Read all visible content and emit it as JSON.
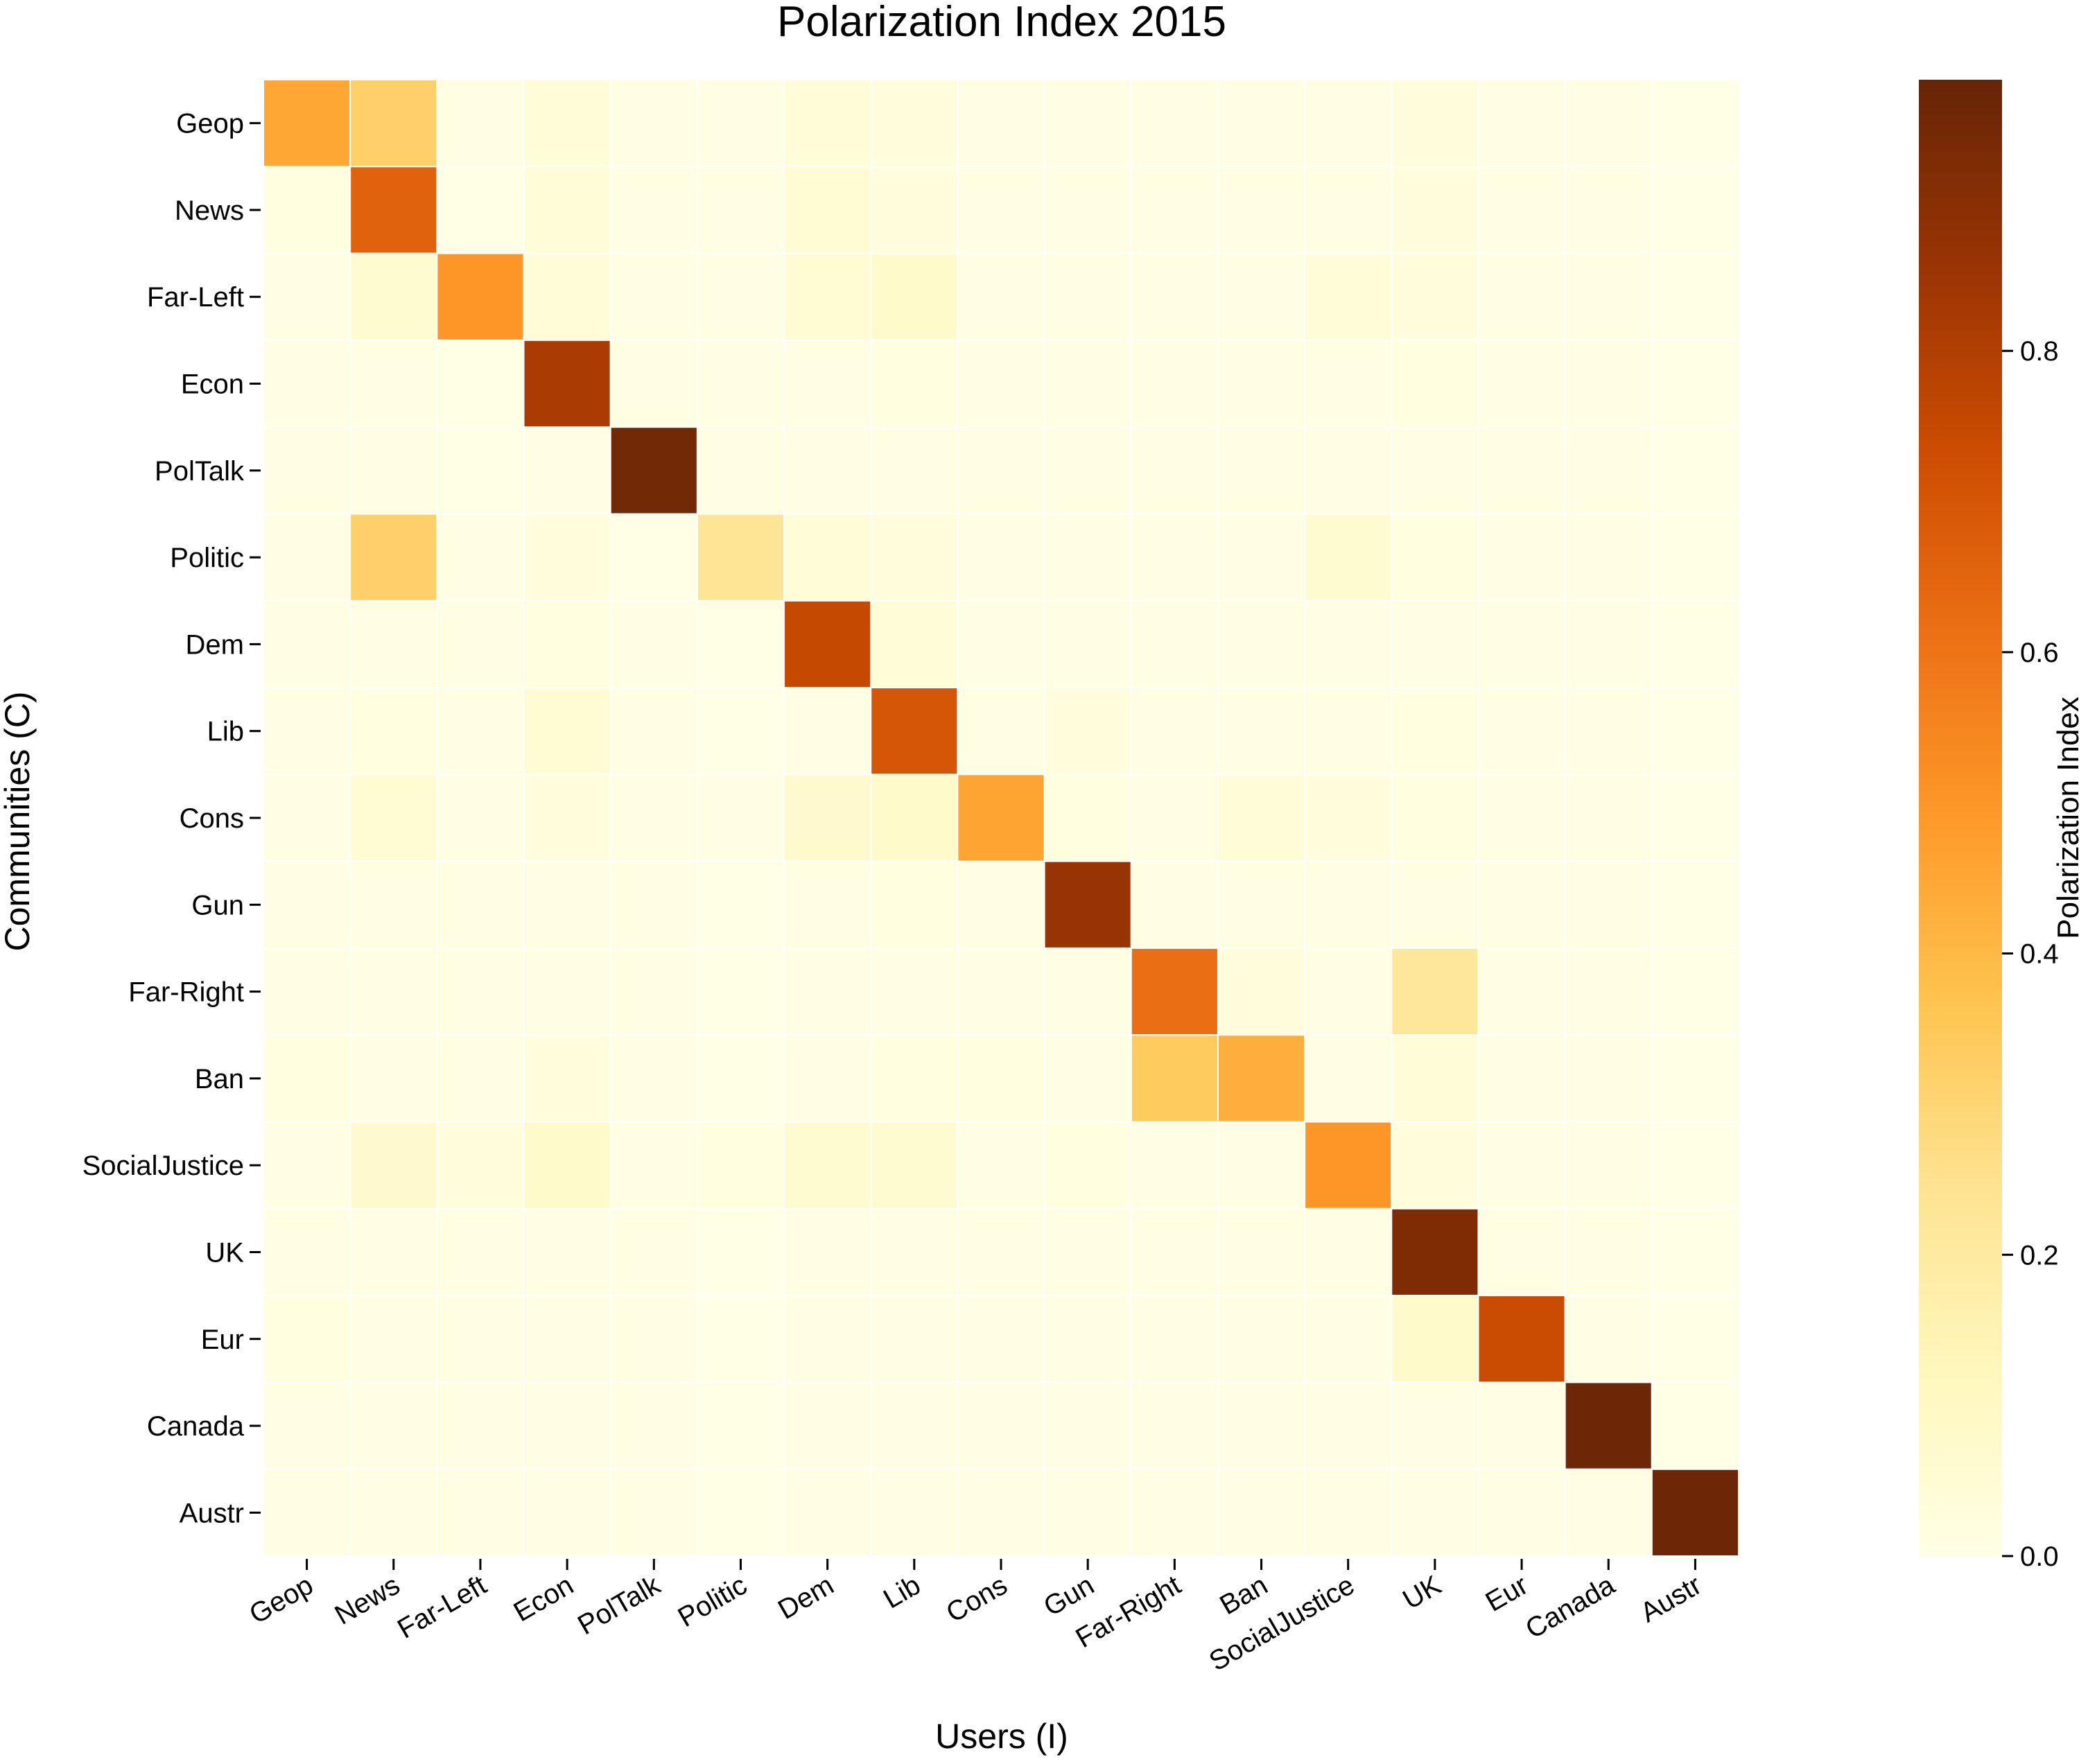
{
  "chart_data": {
    "type": "heatmap",
    "title": "Polarization Index 2015",
    "xlabel": "Users (I)",
    "ylabel": "Communities (C)",
    "colorbar_label": "Polarization Index",
    "colorbar_ticks": [
      0.0,
      0.2,
      0.4,
      0.6,
      0.8
    ],
    "colorbar_tick_labels": [
      "0.0",
      "0.2",
      "0.4",
      "0.6",
      "0.8"
    ],
    "vmin": 0.0,
    "vmax": 0.98,
    "colormap": [
      "#ffffe5",
      "#fff7bc",
      "#fee391",
      "#fec44f",
      "#fe9929",
      "#ec7014",
      "#cc4c02",
      "#993404",
      "#662506"
    ],
    "x_categories": [
      "Geop",
      "News",
      "Far-Left",
      "Econ",
      "PolTalk",
      "Politic",
      "Dem",
      "Lib",
      "Cons",
      "Gun",
      "Far-Right",
      "Ban",
      "SocialJustice",
      "UK",
      "Eur",
      "Canada",
      "Austr"
    ],
    "y_categories": [
      "Geop",
      "News",
      "Far-Left",
      "Econ",
      "PolTalk",
      "Politic",
      "Dem",
      "Lib",
      "Cons",
      "Gun",
      "Far-Right",
      "Ban",
      "SocialJustice",
      "UK",
      "Eur",
      "Canada",
      "Austr"
    ],
    "values": [
      [
        0.45,
        0.32,
        0.01,
        0.04,
        0.01,
        0.01,
        0.04,
        0.03,
        0.01,
        0.01,
        0.01,
        0.01,
        0.01,
        0.03,
        0.01,
        0.01,
        0.0
      ],
      [
        0.02,
        0.66,
        0.0,
        0.04,
        0.01,
        0.01,
        0.05,
        0.03,
        0.01,
        0.01,
        0.01,
        0.01,
        0.01,
        0.03,
        0.01,
        0.01,
        0.0
      ],
      [
        0.01,
        0.06,
        0.5,
        0.04,
        0.01,
        0.01,
        0.05,
        0.08,
        0.01,
        0.01,
        0.01,
        0.01,
        0.04,
        0.03,
        0.01,
        0.01,
        0.0
      ],
      [
        0.01,
        0.01,
        0.0,
        0.82,
        0.01,
        0.01,
        0.01,
        0.02,
        0.01,
        0.01,
        0.01,
        0.01,
        0.01,
        0.02,
        0.01,
        0.01,
        0.0
      ],
      [
        0.01,
        0.01,
        0.0,
        0.01,
        0.95,
        0.01,
        0.01,
        0.01,
        0.01,
        0.01,
        0.01,
        0.01,
        0.01,
        0.01,
        0.01,
        0.01,
        0.0
      ],
      [
        0.01,
        0.32,
        0.01,
        0.03,
        0.0,
        0.23,
        0.04,
        0.03,
        0.01,
        0.01,
        0.01,
        0.01,
        0.06,
        0.02,
        0.01,
        0.01,
        0.0
      ],
      [
        0.01,
        0.01,
        0.01,
        0.02,
        0.01,
        0.0,
        0.75,
        0.04,
        0.01,
        0.01,
        0.01,
        0.01,
        0.01,
        0.01,
        0.01,
        0.01,
        0.0
      ],
      [
        0.01,
        0.02,
        0.01,
        0.05,
        0.01,
        0.0,
        0.01,
        0.7,
        0.01,
        0.03,
        0.01,
        0.01,
        0.01,
        0.02,
        0.01,
        0.01,
        0.0
      ],
      [
        0.01,
        0.05,
        0.01,
        0.03,
        0.01,
        0.01,
        0.07,
        0.08,
        0.46,
        0.02,
        0.01,
        0.04,
        0.03,
        0.02,
        0.01,
        0.01,
        0.0
      ],
      [
        0.01,
        0.01,
        0.01,
        0.01,
        0.01,
        0.0,
        0.01,
        0.02,
        0.01,
        0.86,
        0.01,
        0.01,
        0.01,
        0.01,
        0.01,
        0.01,
        0.0
      ],
      [
        0.01,
        0.01,
        0.01,
        0.01,
        0.01,
        0.0,
        0.01,
        0.01,
        0.01,
        0.01,
        0.62,
        0.03,
        0.01,
        0.22,
        0.01,
        0.01,
        0.0
      ],
      [
        0.02,
        0.01,
        0.01,
        0.03,
        0.01,
        0.0,
        0.01,
        0.02,
        0.02,
        0.01,
        0.34,
        0.43,
        0.01,
        0.04,
        0.01,
        0.01,
        0.0
      ],
      [
        0.01,
        0.07,
        0.03,
        0.08,
        0.01,
        0.02,
        0.06,
        0.06,
        0.01,
        0.02,
        0.01,
        0.01,
        0.5,
        0.03,
        0.01,
        0.01,
        0.0
      ],
      [
        0.01,
        0.01,
        0.01,
        0.01,
        0.01,
        0.0,
        0.01,
        0.01,
        0.01,
        0.01,
        0.01,
        0.01,
        0.01,
        0.92,
        0.01,
        0.01,
        0.0
      ],
      [
        0.02,
        0.01,
        0.01,
        0.01,
        0.01,
        0.0,
        0.01,
        0.01,
        0.01,
        0.01,
        0.01,
        0.01,
        0.01,
        0.08,
        0.74,
        0.01,
        0.0
      ],
      [
        0.01,
        0.01,
        0.01,
        0.01,
        0.01,
        0.0,
        0.01,
        0.01,
        0.01,
        0.01,
        0.01,
        0.01,
        0.01,
        0.01,
        0.01,
        0.96,
        0.0
      ],
      [
        0.01,
        0.01,
        0.01,
        0.01,
        0.01,
        0.0,
        0.01,
        0.01,
        0.01,
        0.01,
        0.01,
        0.01,
        0.01,
        0.01,
        0.01,
        0.01,
        0.96
      ]
    ]
  }
}
